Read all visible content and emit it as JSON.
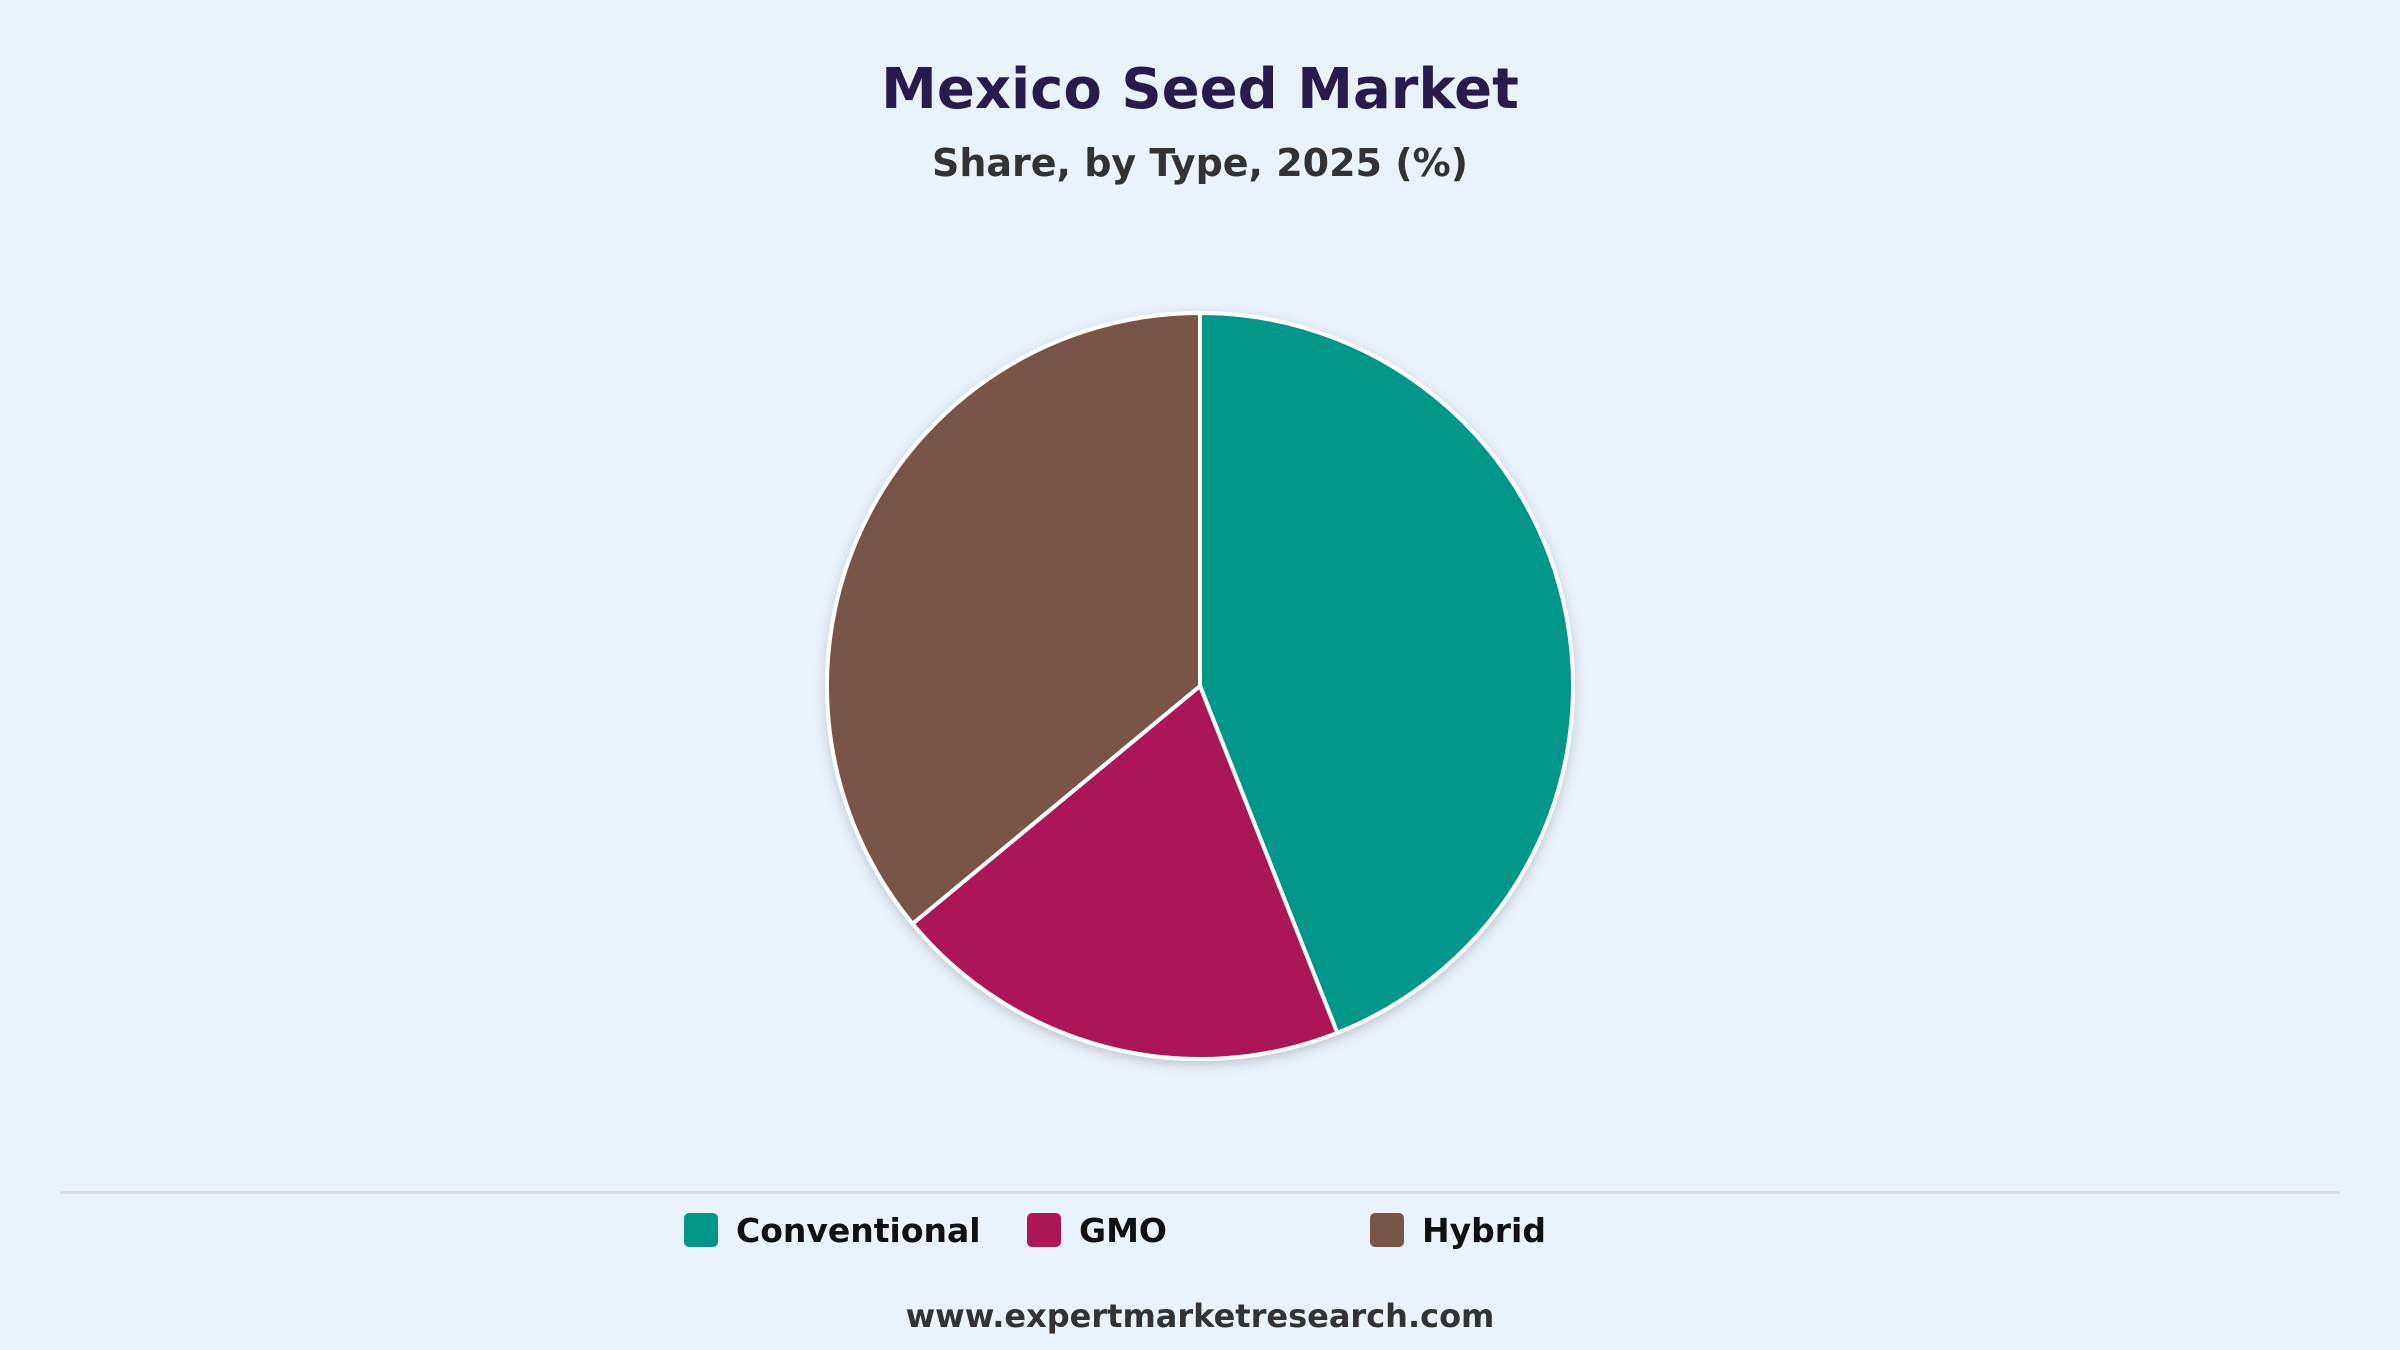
{
  "chart_data": {
    "type": "pie",
    "title": "Mexico Seed Market",
    "subtitle": "Share, by Type, 2025 (%)",
    "categories": [
      "Conventional",
      "GMO",
      "Hybrid"
    ],
    "values": [
      44,
      20,
      36
    ],
    "colors": [
      "#009688",
      "#AD1756",
      "#795548"
    ],
    "legend_position": "bottom"
  },
  "footer": {
    "source": "www.expertmarketresearch.com"
  }
}
